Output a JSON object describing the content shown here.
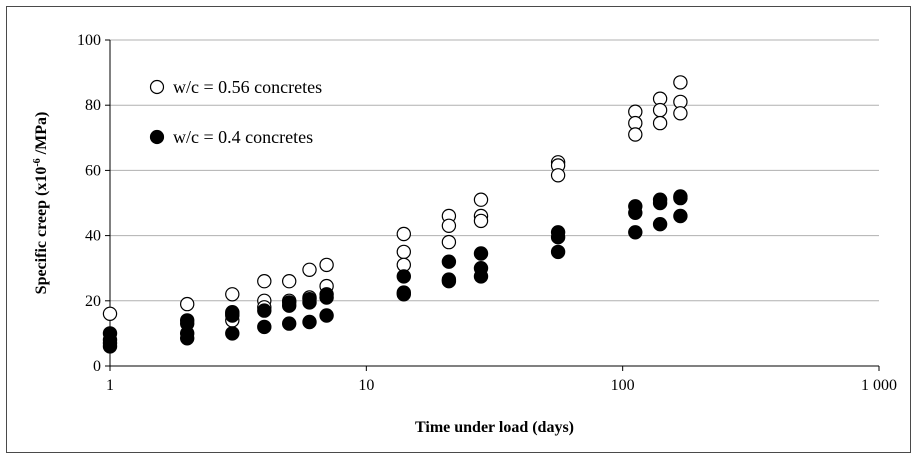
{
  "chart_data": {
    "type": "scatter",
    "xlabel": "Time under load (days)",
    "ylabel_main": "Specific creep (x10",
    "ylabel_sup": "-6",
    "ylabel_end": " /MPa)",
    "xscale": "log",
    "xlim": [
      1,
      1000
    ],
    "ylim": [
      0,
      100
    ],
    "x_ticks": [
      1,
      10,
      100,
      1000
    ],
    "x_tick_labels": [
      "1",
      "10",
      "100",
      "1 000"
    ],
    "y_ticks": [
      0,
      20,
      40,
      60,
      80,
      100
    ],
    "y_tick_labels": [
      "0",
      "20",
      "40",
      "60",
      "80",
      "100"
    ],
    "grid": "horizontal",
    "legend_position": "top-left",
    "colors": {
      "gridline": "#b0b0b0",
      "marker_stroke": "#000000",
      "filled_marker": "#000000",
      "open_marker": "#ffffff"
    },
    "series": [
      {
        "name": "w/c = 0.56 concretes",
        "marker": "open-circle",
        "points": [
          [
            1,
            16
          ],
          [
            2,
            19
          ],
          [
            3,
            22
          ],
          [
            3,
            16
          ],
          [
            3,
            14
          ],
          [
            4,
            26
          ],
          [
            4,
            20
          ],
          [
            4,
            18
          ],
          [
            5,
            26
          ],
          [
            5,
            20
          ],
          [
            6,
            29.5
          ],
          [
            6,
            21
          ],
          [
            7,
            31
          ],
          [
            7,
            24.5
          ],
          [
            14,
            40.5
          ],
          [
            14,
            35
          ],
          [
            14,
            31
          ],
          [
            21,
            46
          ],
          [
            21,
            43
          ],
          [
            21,
            38
          ],
          [
            28,
            51
          ],
          [
            28,
            46
          ],
          [
            28,
            44.5
          ],
          [
            56,
            62.5
          ],
          [
            56,
            61.5
          ],
          [
            56,
            58.5
          ],
          [
            112,
            78
          ],
          [
            112,
            74.5
          ],
          [
            112,
            71
          ],
          [
            140,
            82
          ],
          [
            140,
            78.5
          ],
          [
            140,
            74.5
          ],
          [
            168,
            87
          ],
          [
            168,
            81
          ],
          [
            168,
            77.5
          ]
        ]
      },
      {
        "name": "w/c = 0.4 concretes",
        "marker": "filled-circle",
        "points": [
          [
            1,
            10
          ],
          [
            1,
            8
          ],
          [
            1,
            7
          ],
          [
            1,
            6
          ],
          [
            2,
            14
          ],
          [
            2,
            13
          ],
          [
            2,
            10
          ],
          [
            2,
            8.5
          ],
          [
            3,
            16.5
          ],
          [
            3,
            15.5
          ],
          [
            3,
            10
          ],
          [
            4,
            17
          ],
          [
            4,
            12
          ],
          [
            5,
            19.5
          ],
          [
            5,
            18.5
          ],
          [
            5,
            13
          ],
          [
            6,
            20.5
          ],
          [
            6,
            19.5
          ],
          [
            6,
            13.5
          ],
          [
            7,
            22
          ],
          [
            7,
            21
          ],
          [
            7,
            15.5
          ],
          [
            14,
            27.5
          ],
          [
            14,
            22.5
          ],
          [
            14,
            22
          ],
          [
            21,
            32
          ],
          [
            21,
            26.5
          ],
          [
            21,
            26
          ],
          [
            28,
            34.5
          ],
          [
            28,
            30
          ],
          [
            28,
            27.5
          ],
          [
            56,
            41
          ],
          [
            56,
            39.5
          ],
          [
            56,
            35
          ],
          [
            112,
            49
          ],
          [
            112,
            47
          ],
          [
            112,
            41
          ],
          [
            140,
            51
          ],
          [
            140,
            50
          ],
          [
            140,
            43.5
          ],
          [
            168,
            52
          ],
          [
            168,
            51.5
          ],
          [
            168,
            46
          ]
        ]
      }
    ]
  }
}
